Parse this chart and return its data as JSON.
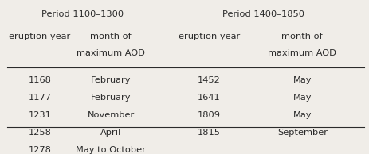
{
  "period1_header": "Period 1100–1300",
  "period2_header": "Period 1400–1850",
  "col1_header_line1": "eruption year",
  "col2_header_line1": "month of",
  "col2_header_line2": "maximum AOD",
  "col3_header_line1": "eruption year",
  "col4_header_line1": "month of",
  "col4_header_line2": "maximum AOD",
  "rows": [
    [
      "1168",
      "February",
      "1452",
      "May"
    ],
    [
      "1177",
      "February",
      "1641",
      "May"
    ],
    [
      "1231",
      "November",
      "1809",
      "May"
    ],
    [
      "1258",
      "April",
      "1815",
      "September"
    ],
    [
      "1278",
      "May to October",
      "",
      ""
    ]
  ],
  "bg_color": "#f0ede8",
  "text_color": "#2b2b2b",
  "font_size": 8.2,
  "header_font_size": 8.2
}
